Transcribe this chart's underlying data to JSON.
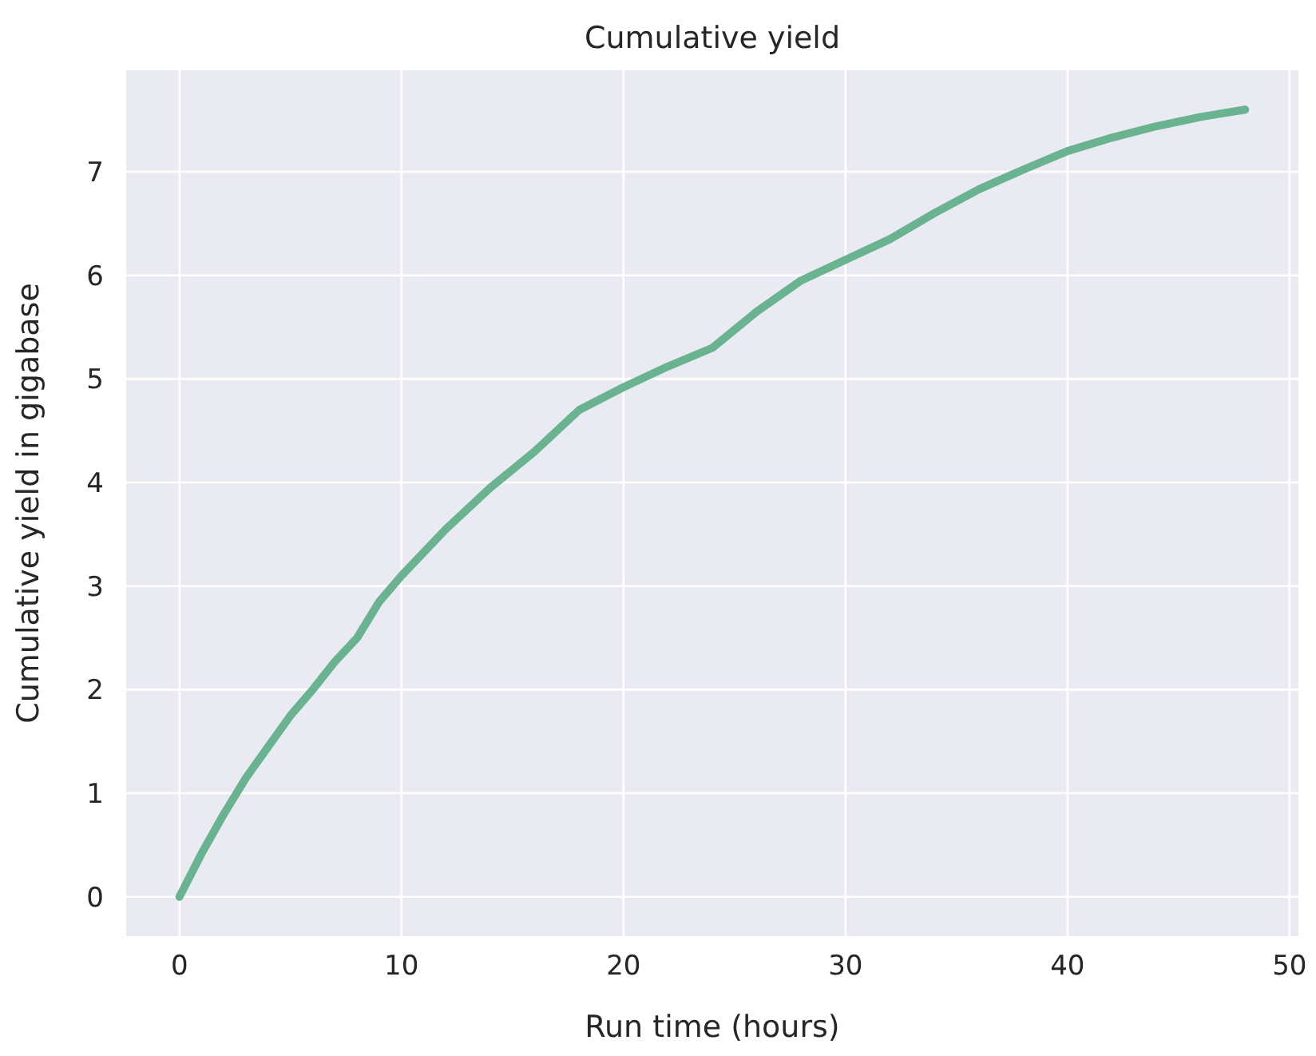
{
  "chart_data": {
    "type": "line",
    "title": "Cumulative yield",
    "xlabel": "Run time (hours)",
    "ylabel": "Cumulative yield in gigabase",
    "x": [
      0,
      1,
      2,
      3,
      4,
      5,
      6,
      7,
      8,
      9,
      10,
      12,
      14,
      16,
      18,
      20,
      22,
      24,
      26,
      28,
      30,
      32,
      34,
      36,
      38,
      40,
      42,
      44,
      46,
      48
    ],
    "series": [
      {
        "color": "#69b391",
        "values": [
          0,
          0.42,
          0.8,
          1.15,
          1.45,
          1.75,
          2.0,
          2.27,
          2.5,
          2.85,
          3.1,
          3.55,
          3.95,
          4.3,
          4.7,
          4.92,
          5.12,
          5.3,
          5.65,
          5.95,
          6.15,
          6.35,
          6.6,
          6.83,
          7.02,
          7.2,
          7.33,
          7.44,
          7.53,
          7.6
        ]
      }
    ],
    "xlim": [
      -2.4,
      50.4
    ],
    "ylim": [
      -0.38,
      7.98
    ],
    "xticks": [
      0,
      10,
      20,
      30,
      40,
      50
    ],
    "yticks": [
      0,
      1,
      2,
      3,
      4,
      5,
      6,
      7
    ],
    "grid": true,
    "marker": "none",
    "line_style": "solid"
  }
}
